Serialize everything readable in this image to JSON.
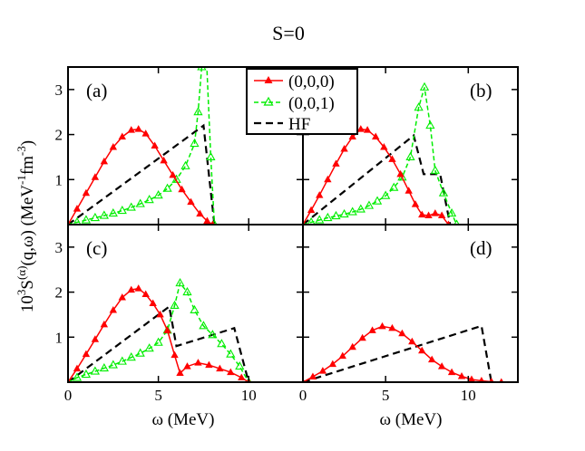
{
  "figure": {
    "title": "S=0",
    "ylabel": {
      "base": "10",
      "exp1": "3",
      "S": "S",
      "sup_alpha": "(α)",
      "args": "(q,ω) (MeV",
      "exp2": "-1",
      "fm": "fm",
      "exp3": "-3",
      "close": ")"
    },
    "xlabel": "ω (MeV)"
  },
  "legend": {
    "location": "top-center",
    "entries": [
      {
        "label": "(0,0,0)",
        "color": "#ff0000",
        "marker": "filled-triangle",
        "dash": "solid"
      },
      {
        "label": "(0,0,1)",
        "color": "#00ee00",
        "marker": "open-triangle",
        "dash": "dashed"
      },
      {
        "label": "HF",
        "color": "#000000",
        "marker": "none",
        "dash": "dashed"
      }
    ]
  },
  "chart_data": [
    {
      "type": "line",
      "panel": "(a)",
      "xlim": [
        0,
        13
      ],
      "ylim": [
        0,
        3.5
      ],
      "xticks": [
        0,
        5,
        10
      ],
      "yticks": [
        1,
        2,
        3
      ],
      "xtick_labels": false,
      "ytick_labels": true,
      "series": [
        {
          "name": "(0,0,0)",
          "color": "#ff0000",
          "dash": "solid",
          "marker": "filled-triangle",
          "points": [
            [
              0,
              0
            ],
            [
              0.5,
              0.35
            ],
            [
              1,
              0.7
            ],
            [
              1.5,
              1.05
            ],
            [
              2,
              1.4
            ],
            [
              2.5,
              1.72
            ],
            [
              3,
              1.95
            ],
            [
              3.5,
              2.1
            ],
            [
              3.9,
              2.12
            ],
            [
              4.3,
              2.02
            ],
            [
              4.8,
              1.75
            ],
            [
              5.3,
              1.42
            ],
            [
              5.8,
              1.1
            ],
            [
              6.3,
              0.78
            ],
            [
              6.8,
              0.5
            ],
            [
              7.3,
              0.24
            ],
            [
              7.7,
              0.08
            ],
            [
              8.0,
              0
            ]
          ]
        },
        {
          "name": "(0,0,1)",
          "color": "#00ee00",
          "dash": "dashed",
          "marker": "open-triangle",
          "points": [
            [
              0,
              0
            ],
            [
              0.5,
              0.05
            ],
            [
              1,
              0.1
            ],
            [
              1.5,
              0.15
            ],
            [
              2,
              0.2
            ],
            [
              2.5,
              0.25
            ],
            [
              3,
              0.31
            ],
            [
              3.5,
              0.38
            ],
            [
              4,
              0.46
            ],
            [
              4.5,
              0.55
            ],
            [
              5,
              0.65
            ],
            [
              5.5,
              0.8
            ],
            [
              6,
              1.0
            ],
            [
              6.5,
              1.3
            ],
            [
              7,
              1.8
            ],
            [
              7.2,
              2.5
            ],
            [
              7.4,
              3.5
            ],
            [
              7.65,
              3.8
            ],
            [
              7.9,
              1.5
            ],
            [
              8.1,
              0
            ]
          ]
        },
        {
          "name": "HF",
          "color": "#000000",
          "dash": "dashed",
          "marker": "none",
          "points": [
            [
              0,
              0
            ],
            [
              7.5,
              2.2
            ],
            [
              8.1,
              0
            ]
          ]
        }
      ]
    },
    {
      "type": "line",
      "panel": "(b)",
      "xlim": [
        0,
        13
      ],
      "ylim": [
        0,
        3.5
      ],
      "xticks": [
        0,
        5,
        10
      ],
      "yticks": [
        1,
        2,
        3
      ],
      "xtick_labels": false,
      "ytick_labels": false,
      "series": [
        {
          "name": "(0,0,0)",
          "color": "#ff0000",
          "dash": "solid",
          "marker": "filled-triangle",
          "points": [
            [
              0,
              0
            ],
            [
              0.5,
              0.32
            ],
            [
              1,
              0.65
            ],
            [
              1.5,
              1.0
            ],
            [
              2,
              1.35
            ],
            [
              2.5,
              1.68
            ],
            [
              3,
              1.95
            ],
            [
              3.5,
              2.12
            ],
            [
              3.9,
              2.1
            ],
            [
              4.4,
              1.95
            ],
            [
              4.9,
              1.72
            ],
            [
              5.4,
              1.45
            ],
            [
              5.9,
              1.12
            ],
            [
              6.4,
              0.75
            ],
            [
              6.8,
              0.45
            ],
            [
              7.2,
              0.22
            ],
            [
              7.6,
              0.2
            ],
            [
              8.0,
              0.25
            ],
            [
              8.4,
              0.2
            ],
            [
              8.8,
              0
            ]
          ]
        },
        {
          "name": "(0,0,1)",
          "color": "#00ee00",
          "dash": "dashed",
          "marker": "open-triangle",
          "points": [
            [
              0,
              0
            ],
            [
              0.5,
              0.05
            ],
            [
              1,
              0.1
            ],
            [
              1.5,
              0.15
            ],
            [
              2,
              0.19
            ],
            [
              2.5,
              0.23
            ],
            [
              3,
              0.28
            ],
            [
              3.5,
              0.34
            ],
            [
              4,
              0.42
            ],
            [
              4.5,
              0.52
            ],
            [
              5,
              0.64
            ],
            [
              5.5,
              0.82
            ],
            [
              6,
              1.05
            ],
            [
              6.5,
              1.5
            ],
            [
              7,
              2.6
            ],
            [
              7.35,
              3.05
            ],
            [
              7.7,
              2.2
            ],
            [
              8.0,
              1.2
            ],
            [
              8.5,
              0.7
            ],
            [
              9.0,
              0.25
            ],
            [
              9.3,
              0
            ]
          ]
        },
        {
          "name": "HF",
          "color": "#000000",
          "dash": "dashed",
          "marker": "none",
          "points": [
            [
              0,
              0
            ],
            [
              6.7,
              1.98
            ],
            [
              7.3,
              1.12
            ],
            [
              8.3,
              1.12
            ],
            [
              8.9,
              0
            ]
          ]
        }
      ]
    },
    {
      "type": "line",
      "panel": "(c)",
      "xlim": [
        0,
        13
      ],
      "ylim": [
        0,
        3.5
      ],
      "xticks": [
        0,
        5,
        10
      ],
      "yticks": [
        1,
        2,
        3
      ],
      "xtick_labels": true,
      "ytick_labels": true,
      "series": [
        {
          "name": "(0,0,0)",
          "color": "#ff0000",
          "dash": "solid",
          "marker": "filled-triangle",
          "points": [
            [
              0,
              0
            ],
            [
              0.5,
              0.3
            ],
            [
              1,
              0.62
            ],
            [
              1.5,
              0.95
            ],
            [
              2,
              1.28
            ],
            [
              2.5,
              1.6
            ],
            [
              3,
              1.88
            ],
            [
              3.5,
              2.05
            ],
            [
              3.9,
              2.08
            ],
            [
              4.3,
              1.95
            ],
            [
              4.7,
              1.75
            ],
            [
              5.1,
              1.5
            ],
            [
              5.5,
              1.15
            ],
            [
              5.9,
              0.6
            ],
            [
              6.2,
              0.2
            ],
            [
              6.6,
              0.35
            ],
            [
              7.2,
              0.43
            ],
            [
              7.8,
              0.38
            ],
            [
              8.4,
              0.3
            ],
            [
              9.0,
              0.22
            ],
            [
              9.6,
              0.1
            ],
            [
              10.0,
              0
            ]
          ]
        },
        {
          "name": "(0,0,1)",
          "color": "#00ee00",
          "dash": "dashed",
          "marker": "open-triangle",
          "points": [
            [
              0,
              0
            ],
            [
              0.5,
              0.1
            ],
            [
              1,
              0.17
            ],
            [
              1.5,
              0.24
            ],
            [
              2,
              0.31
            ],
            [
              2.5,
              0.38
            ],
            [
              3,
              0.46
            ],
            [
              3.5,
              0.55
            ],
            [
              4,
              0.64
            ],
            [
              4.5,
              0.75
            ],
            [
              5,
              0.88
            ],
            [
              5.5,
              1.15
            ],
            [
              5.9,
              1.7
            ],
            [
              6.2,
              2.2
            ],
            [
              6.6,
              2.0
            ],
            [
              7.0,
              1.6
            ],
            [
              7.5,
              1.25
            ],
            [
              8.0,
              1.05
            ],
            [
              8.5,
              0.85
            ],
            [
              9.0,
              0.62
            ],
            [
              9.5,
              0.35
            ],
            [
              10.0,
              0
            ]
          ]
        },
        {
          "name": "HF",
          "color": "#000000",
          "dash": "dashed",
          "marker": "none",
          "points": [
            [
              0,
              0
            ],
            [
              5.6,
              1.68
            ],
            [
              6.0,
              0.8
            ],
            [
              9.2,
              1.2
            ],
            [
              10.0,
              0
            ]
          ]
        }
      ]
    },
    {
      "type": "line",
      "panel": "(d)",
      "xlim": [
        0,
        13
      ],
      "ylim": [
        0,
        3.5
      ],
      "xticks": [
        0,
        5,
        10
      ],
      "yticks": [
        1,
        2,
        3
      ],
      "xtick_labels": true,
      "ytick_labels": false,
      "series": [
        {
          "name": "(0,0,0)",
          "color": "#ff0000",
          "dash": "solid",
          "marker": "filled-triangle",
          "points": [
            [
              0,
              0
            ],
            [
              0.6,
              0.12
            ],
            [
              1.2,
              0.25
            ],
            [
              1.8,
              0.4
            ],
            [
              2.4,
              0.58
            ],
            [
              3,
              0.78
            ],
            [
              3.6,
              0.98
            ],
            [
              4.2,
              1.15
            ],
            [
              4.8,
              1.24
            ],
            [
              5.4,
              1.2
            ],
            [
              6.0,
              1.08
            ],
            [
              6.6,
              0.9
            ],
            [
              7.2,
              0.7
            ],
            [
              7.8,
              0.5
            ],
            [
              8.4,
              0.35
            ],
            [
              9.0,
              0.22
            ],
            [
              9.6,
              0.13
            ],
            [
              10.2,
              0.06
            ],
            [
              10.8,
              0.03
            ],
            [
              11.4,
              0.01
            ],
            [
              12.0,
              0
            ]
          ]
        },
        {
          "name": "HF",
          "color": "#000000",
          "dash": "dashed",
          "marker": "none",
          "points": [
            [
              0,
              0
            ],
            [
              10.8,
              1.25
            ],
            [
              11.4,
              0
            ]
          ]
        }
      ]
    }
  ]
}
